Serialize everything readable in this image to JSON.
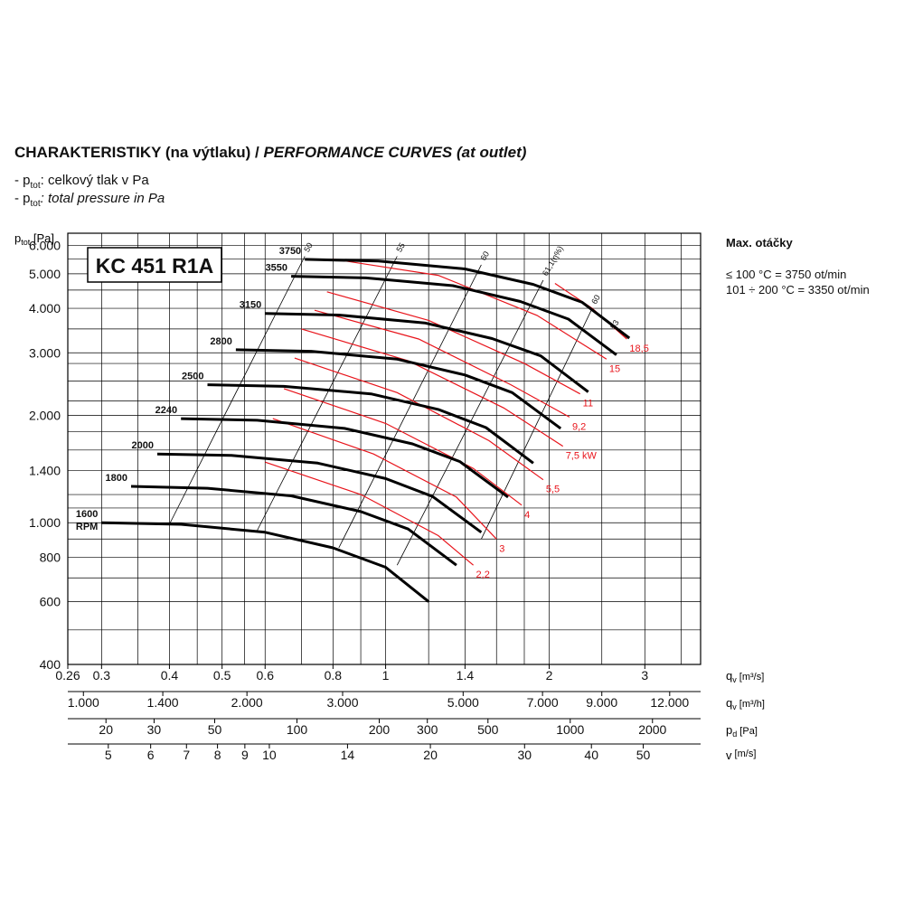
{
  "title": {
    "cz": "CHARAKTERISTIKY (na výtlaku) /",
    "en": "PERFORMANCE CURVES (at outlet)"
  },
  "legend": {
    "dash": "- ",
    "symbol": "p",
    "subscript": "tot",
    "cz": ": celkový tlak v Pa",
    "en": ": total pressure in Pa"
  },
  "side_note": {
    "heading": "Max. otáčky",
    "line1": "≤ 100 °C = 3750 ot/min",
    "line2": "101 ÷ 200 °C = 3350 ot/min"
  },
  "model": "KC 451 R1A",
  "colors": {
    "curve": "#000000",
    "power": "#e8141b",
    "grid": "#000000"
  },
  "chart_data": {
    "type": "line",
    "log_scale": {
      "x": true,
      "y": true
    },
    "grid": true,
    "y_axis": {
      "label": "p",
      "label_sub": "tot",
      "label_unit": " [Pa]",
      "ylim": [
        400,
        6500
      ],
      "ticks": [
        {
          "v": 400,
          "t": "400"
        },
        {
          "v": 600,
          "t": "600"
        },
        {
          "v": 800,
          "t": "800"
        },
        {
          "v": 1000,
          "t": "1.000"
        },
        {
          "v": 1400,
          "t": "1.400"
        },
        {
          "v": 2000,
          "t": "2.000"
        },
        {
          "v": 3000,
          "t": "3.000"
        },
        {
          "v": 4000,
          "t": "4.000"
        },
        {
          "v": 5000,
          "t": "5.000"
        },
        {
          "v": 6000,
          "t": "6.000"
        }
      ]
    },
    "x_axis": {
      "xlim": [
        0.26,
        3.8
      ],
      "scales": [
        {
          "label": "q",
          "sub": "v",
          "unit": " [m³/s]",
          "ticks": [
            {
              "v": 0.26,
              "t": "0.26"
            },
            {
              "v": 0.3,
              "t": "0.3"
            },
            {
              "v": 0.4,
              "t": "0.4"
            },
            {
              "v": 0.5,
              "t": "0.5"
            },
            {
              "v": 0.6,
              "t": "0.6"
            },
            {
              "v": 0.8,
              "t": "0.8"
            },
            {
              "v": 1,
              "t": "1"
            },
            {
              "v": 1.4,
              "t": "1.4"
            },
            {
              "v": 2,
              "t": "2"
            },
            {
              "v": 3,
              "t": "3"
            }
          ]
        },
        {
          "label": "q",
          "sub": "v",
          "unit": " [m³/h]",
          "ticks": [
            {
              "v": 1000,
              "t": "1.000"
            },
            {
              "v": 1400,
              "t": "1.400"
            },
            {
              "v": 2000,
              "t": "2.000"
            },
            {
              "v": 3000,
              "t": "3.000"
            },
            {
              "v": 5000,
              "t": "5.000"
            },
            {
              "v": 7000,
              "t": "7.000"
            },
            {
              "v": 9000,
              "t": "9.000"
            },
            {
              "v": 12000,
              "t": "12.000"
            }
          ]
        },
        {
          "label": "p",
          "sub": "d",
          "unit": " [Pa]",
          "ticks": [
            {
              "v": 20,
              "t": "20"
            },
            {
              "v": 30,
              "t": "30"
            },
            {
              "v": 50,
              "t": "50"
            },
            {
              "v": 100,
              "t": "100"
            },
            {
              "v": 200,
              "t": "200"
            },
            {
              "v": 300,
              "t": "300"
            },
            {
              "v": 500,
              "t": "500"
            },
            {
              "v": 1000,
              "t": "1000"
            },
            {
              "v": 2000,
              "t": "2000"
            }
          ]
        },
        {
          "label": "v",
          "sub": "",
          "unit": " [m/s]",
          "ticks": [
            {
              "v": 5,
              "t": "5"
            },
            {
              "v": 6,
              "t": "6"
            },
            {
              "v": 7,
              "t": "7"
            },
            {
              "v": 8,
              "t": "8"
            },
            {
              "v": 9,
              "t": "9"
            },
            {
              "v": 10,
              "t": "10"
            },
            {
              "v": 14,
              "t": "14"
            },
            {
              "v": 20,
              "t": "20"
            },
            {
              "v": 30,
              "t": "30"
            },
            {
              "v": 40,
              "t": "40"
            },
            {
              "v": 50,
              "t": "50"
            }
          ]
        }
      ]
    },
    "speed_curves": [
      {
        "rpm": "1600",
        "unit": "RPM",
        "points": [
          [
            0.3,
            1000
          ],
          [
            0.42,
            990
          ],
          [
            0.6,
            940
          ],
          [
            0.8,
            850
          ],
          [
            1.0,
            750
          ],
          [
            1.2,
            600
          ]
        ]
      },
      {
        "rpm": "1800",
        "points": [
          [
            0.34,
            1265
          ],
          [
            0.47,
            1250
          ],
          [
            0.67,
            1190
          ],
          [
            0.9,
            1075
          ],
          [
            1.1,
            960
          ],
          [
            1.35,
            760
          ]
        ]
      },
      {
        "rpm": "2000",
        "points": [
          [
            0.38,
            1560
          ],
          [
            0.52,
            1545
          ],
          [
            0.75,
            1470
          ],
          [
            1.0,
            1330
          ],
          [
            1.22,
            1185
          ],
          [
            1.5,
            940
          ]
        ]
      },
      {
        "rpm": "2240",
        "points": [
          [
            0.42,
            1960
          ],
          [
            0.58,
            1940
          ],
          [
            0.84,
            1840
          ],
          [
            1.12,
            1665
          ],
          [
            1.37,
            1485
          ],
          [
            1.68,
            1180
          ]
        ]
      },
      {
        "rpm": "2500",
        "points": [
          [
            0.47,
            2440
          ],
          [
            0.65,
            2415
          ],
          [
            0.94,
            2300
          ],
          [
            1.25,
            2080
          ],
          [
            1.53,
            1850
          ],
          [
            1.87,
            1470
          ]
        ]
      },
      {
        "rpm": "2800",
        "points": [
          [
            0.53,
            3060
          ],
          [
            0.73,
            3030
          ],
          [
            1.05,
            2880
          ],
          [
            1.4,
            2600
          ],
          [
            1.71,
            2320
          ],
          [
            2.1,
            1840
          ]
        ]
      },
      {
        "rpm": "3150",
        "points": [
          [
            0.6,
            3870
          ],
          [
            0.82,
            3830
          ],
          [
            1.18,
            3640
          ],
          [
            1.57,
            3290
          ],
          [
            1.93,
            2940
          ],
          [
            2.36,
            2330
          ]
        ]
      },
      {
        "rpm": "3550",
        "points": [
          [
            0.67,
            4920
          ],
          [
            0.92,
            4870
          ],
          [
            1.33,
            4630
          ],
          [
            1.77,
            4180
          ],
          [
            2.17,
            3730
          ],
          [
            2.66,
            2960
          ]
        ]
      },
      {
        "rpm": "3750",
        "points": [
          [
            0.71,
            5490
          ],
          [
            0.97,
            5430
          ],
          [
            1.4,
            5160
          ],
          [
            1.87,
            4670
          ],
          [
            2.3,
            4160
          ],
          [
            2.81,
            3300
          ]
        ]
      }
    ],
    "efficiency_lines": [
      {
        "label": "50",
        "points": [
          [
            0.4,
            990
          ],
          [
            0.71,
            5600
          ]
        ]
      },
      {
        "label": "55",
        "points": [
          [
            0.58,
            950
          ],
          [
            1.05,
            5600
          ]
        ]
      },
      {
        "label": "60",
        "points": [
          [
            0.82,
            850
          ],
          [
            1.5,
            5300
          ]
        ]
      },
      {
        "label": "61,1(η%)",
        "points": [
          [
            1.05,
            760
          ],
          [
            1.95,
            4800
          ]
        ]
      },
      {
        "label": "60",
        "points": [
          [
            1.5,
            900
          ],
          [
            2.4,
            4000
          ]
        ]
      },
      {
        "label": "53",
        "points": [
          [
            2.6,
            3400
          ]
        ]
      }
    ],
    "power_curves": [
      {
        "label": "2,2",
        "points": [
          [
            0.6,
            1480
          ],
          [
            0.9,
            1200
          ],
          [
            1.25,
            920
          ],
          [
            1.45,
            760
          ]
        ]
      },
      {
        "label": "3",
        "points": [
          [
            0.62,
            1960
          ],
          [
            0.95,
            1560
          ],
          [
            1.35,
            1180
          ],
          [
            1.6,
            900
          ]
        ]
      },
      {
        "label": "4",
        "points": [
          [
            0.65,
            2380
          ],
          [
            1.0,
            1900
          ],
          [
            1.45,
            1420
          ],
          [
            1.78,
            1120
          ]
        ]
      },
      {
        "label": "5,5",
        "points": [
          [
            0.68,
            2900
          ],
          [
            1.05,
            2320
          ],
          [
            1.55,
            1700
          ],
          [
            1.95,
            1320
          ]
        ]
      },
      {
        "label": "7,5 kW",
        "points": [
          [
            0.7,
            3500
          ],
          [
            1.1,
            2850
          ],
          [
            1.65,
            2100
          ],
          [
            2.12,
            1640
          ]
        ]
      },
      {
        "label": "9,2",
        "points": [
          [
            0.74,
            3950
          ],
          [
            1.15,
            3280
          ],
          [
            1.7,
            2440
          ],
          [
            2.18,
            1980
          ]
        ]
      },
      {
        "label": "11",
        "points": [
          [
            0.78,
            4450
          ],
          [
            1.2,
            3700
          ],
          [
            1.8,
            2800
          ],
          [
            2.28,
            2300
          ]
        ]
      },
      {
        "label": "15",
        "points": [
          [
            0.8,
            5500
          ],
          [
            1.25,
            4950
          ],
          [
            1.9,
            3820
          ],
          [
            2.55,
            2880
          ]
        ]
      },
      {
        "label": "18,5",
        "points": [
          [
            2.05,
            4700
          ],
          [
            2.4,
            4000
          ],
          [
            2.78,
            3280
          ]
        ]
      }
    ]
  }
}
